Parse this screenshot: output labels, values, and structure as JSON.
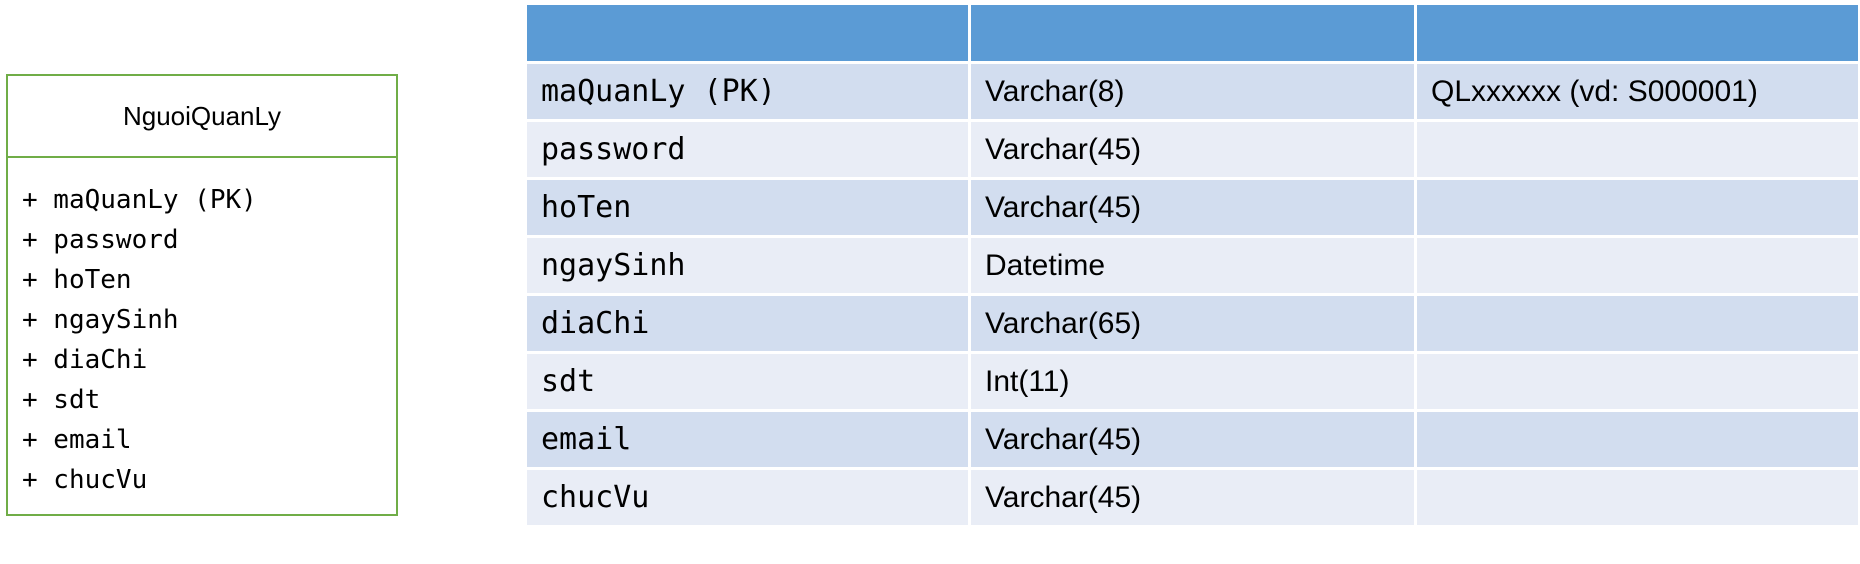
{
  "uml": {
    "class_name": "NguoiQuanLy",
    "attributes": [
      "+ maQuanLy (PK)",
      "+ password",
      "+ hoTen",
      "+ ngaySinh",
      "+ diaChi",
      "+ sdt",
      "+ email",
      "+ chucVu"
    ],
    "border_color": "#70ad47"
  },
  "table": {
    "headers": [
      "",
      "",
      ""
    ],
    "header_color": "#5b9bd5",
    "row_colors": [
      "#d2ddef",
      "#e9edf6"
    ],
    "rows": [
      {
        "field": "maQuanLy (PK)",
        "type": "Varchar(8)",
        "note": "QLxxxxxx (vd: S000001)"
      },
      {
        "field": "password",
        "type": "Varchar(45)",
        "note": ""
      },
      {
        "field": "hoTen",
        "type": "Varchar(45)",
        "note": ""
      },
      {
        "field": "ngaySinh",
        "type": "Datetime",
        "note": ""
      },
      {
        "field": "diaChi",
        "type": "Varchar(65)",
        "note": ""
      },
      {
        "field": "sdt",
        "type": "Int(11)",
        "note": ""
      },
      {
        "field": "email",
        "type": "Varchar(45)",
        "note": ""
      },
      {
        "field": "chucVu",
        "type": "Varchar(45)",
        "note": ""
      }
    ]
  }
}
